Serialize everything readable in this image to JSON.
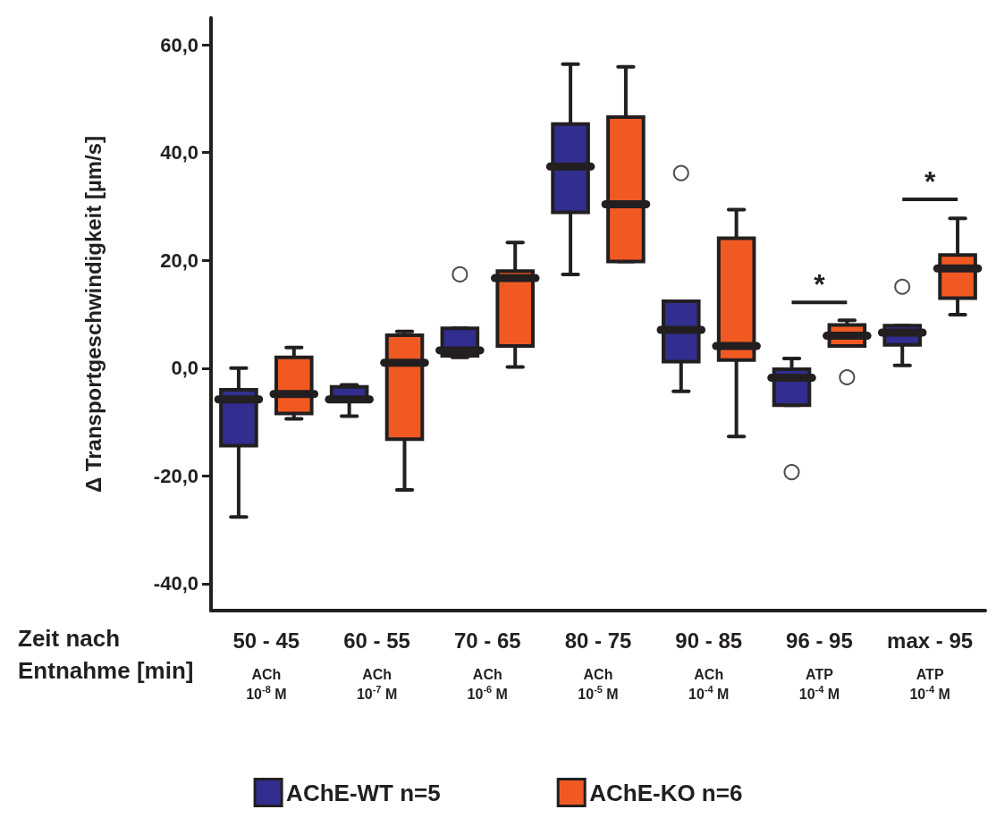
{
  "chart_data": {
    "type": "box",
    "ylabel": "Δ Transportgeschwindigkeit [µm/s]",
    "xlabel": "Zeit nach Entnahme [min]",
    "categories": [
      "50 - 45\n\nACh\n10$^{-8}$ M",
      "60 - 55\n\nACh\n10$^{-7}$ M",
      "70 - 65\n\nACh\n10$^{-6}$ M",
      "80 - 75\n\nACh\n10$^{-5}$ M",
      "90 - 85\n\nACh\n10$^{-4}$ M",
      "96 - 95\n\nATP\n10$^{-4}$ M",
      "max - 95\n\nATP\n10$^{-4}$ M"
    ],
    "ylim": [
      -45,
      65
    ],
    "yticks": [
      {
        "value": -40,
        "label": "-40,0"
      },
      {
        "value": -20,
        "label": "-20,0"
      },
      {
        "value": 0,
        "label": "0,0"
      },
      {
        "value": 20,
        "label": "20,0"
      },
      {
        "value": 40,
        "label": "40,0"
      },
      {
        "value": 60,
        "label": "60,0"
      }
    ],
    "grid": false,
    "legend": "bottom",
    "series": [
      {
        "name": "AChE-WT n=5",
        "color": "#312e8f",
        "boxes": [
          {
            "low": -27.6,
            "q1": -14.4,
            "median": -5.8,
            "q3": -4,
            "high": 0
          },
          {
            "low": -8.9,
            "q1": -6,
            "median": -5.8,
            "q3": -3.5,
            "high": -3.1
          },
          {
            "low": 2,
            "q1": 2.3,
            "median": 3.3,
            "q3": 7.4,
            "high": 7.4,
            "outliers": [
              17.4
            ]
          },
          {
            "low": 17.4,
            "q1": 28.9,
            "median": 37.4,
            "q3": 45.3,
            "high": 56.4
          },
          {
            "low": -4.3,
            "q1": 1.2,
            "median": 7.1,
            "q3": 12.4,
            "high": 12.4,
            "outliers": [
              36.2
            ]
          },
          {
            "low": -6.9,
            "q1": -6.9,
            "median": -1.8,
            "q3": -0.2,
            "high": 1.8,
            "outliers": [
              -19.3
            ]
          },
          {
            "low": 0.5,
            "q1": 4.3,
            "median": 6.6,
            "q3": 7.9,
            "high": 7.9,
            "outliers": [
              15.1
            ]
          }
        ]
      },
      {
        "name": "AChE-KO n=6",
        "color": "#f05a22",
        "boxes": [
          {
            "low": -9.4,
            "q1": -8.4,
            "median": -4.8,
            "q3": 2,
            "high": 3.8
          },
          {
            "low": -22.6,
            "q1": -13.2,
            "median": 1,
            "q3": 6.1,
            "high": 6.8
          },
          {
            "low": 0.2,
            "q1": 4.1,
            "median": 16.7,
            "q3": 18,
            "high": 23.3
          },
          {
            "low": 19.8,
            "q1": 19.8,
            "median": 30.4,
            "q3": 46.6,
            "high": 55.9
          },
          {
            "low": -12.7,
            "q1": 1.5,
            "median": 4.1,
            "q3": 24.1,
            "high": 29.4
          },
          {
            "low": 4.1,
            "q1": 4.1,
            "median": 6,
            "q3": 8,
            "high": 8.9,
            "outliers": [
              -1.7
            ]
          },
          {
            "low": 9.9,
            "q1": 13,
            "median": 18.5,
            "q3": 21,
            "high": 27.8
          }
        ]
      }
    ],
    "annotations": [
      "*",
      "*"
    ]
  }
}
